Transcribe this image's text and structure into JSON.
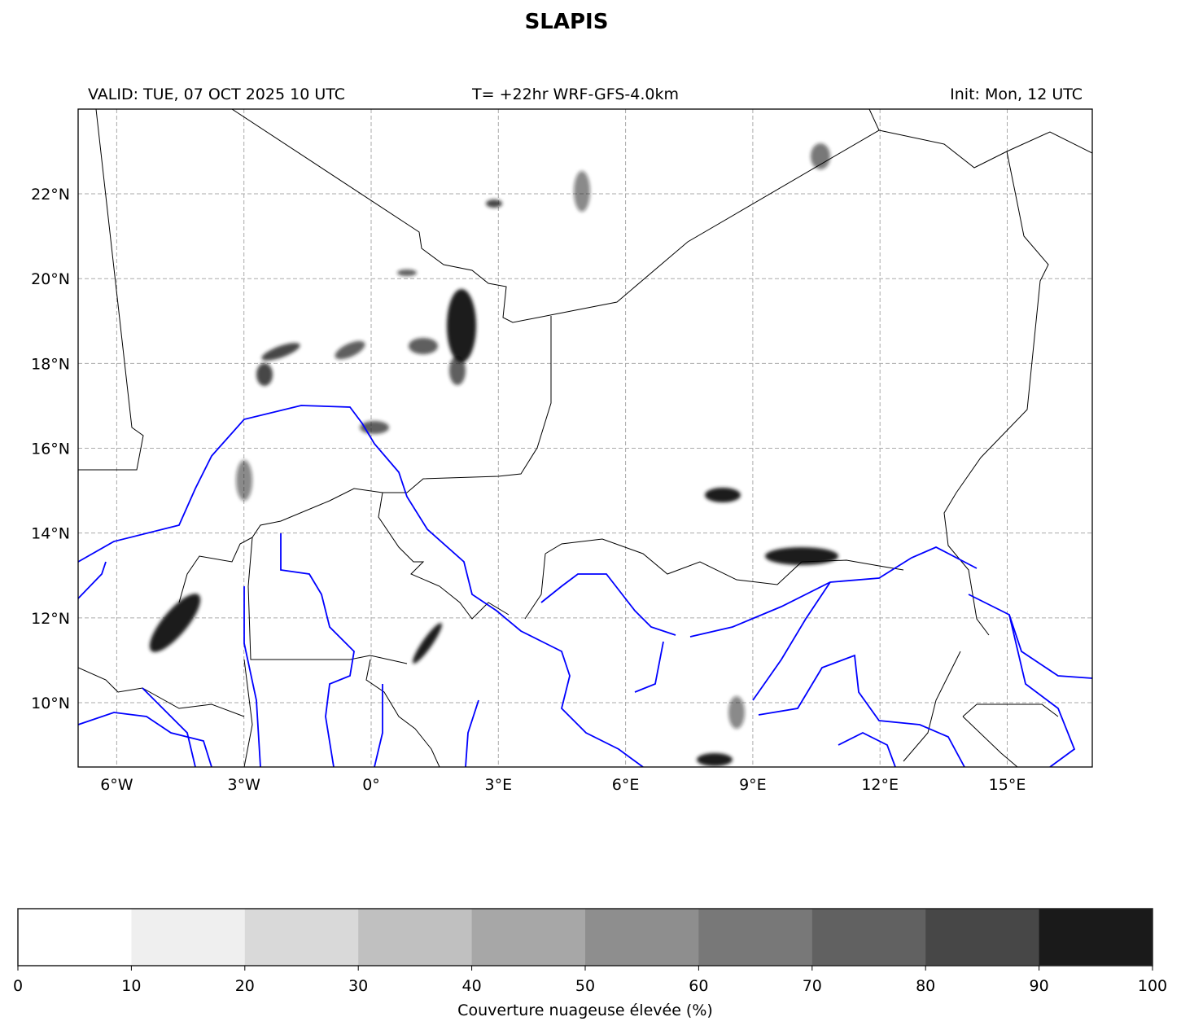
{
  "title": "SLAPIS",
  "header": {
    "valid": "VALID: TUE, 07 OCT 2025 10 UTC",
    "forecast": "T= +22hr WRF-GFS-4.0km",
    "init": "Init: Mon, 12 UTC"
  },
  "map": {
    "lon_range": [
      -7,
      17
    ],
    "lat_range": [
      8.5,
      24
    ],
    "lon_ticks": [
      {
        "value": -6,
        "label": "6°W"
      },
      {
        "value": -3,
        "label": "3°W"
      },
      {
        "value": 0,
        "label": "0°"
      },
      {
        "value": 3,
        "label": "3°E"
      },
      {
        "value": 6,
        "label": "6°E"
      },
      {
        "value": 9,
        "label": "9°E"
      },
      {
        "value": 12,
        "label": "12°E"
      },
      {
        "value": 15,
        "label": "15°E"
      }
    ],
    "lat_ticks": [
      {
        "value": 10,
        "label": "10°N"
      },
      {
        "value": 12,
        "label": "12°N"
      },
      {
        "value": 14,
        "label": "14°N"
      },
      {
        "value": 16,
        "label": "16°N"
      },
      {
        "value": 18,
        "label": "18°N"
      },
      {
        "value": 20,
        "label": "20°N"
      },
      {
        "value": 22,
        "label": "22°N"
      }
    ],
    "gridlines": true,
    "border_color": "#000000",
    "river_color": "#0000ff",
    "cloud_color": "#1a1a1a"
  },
  "colorbar": {
    "label": "Couverture nuageuse élevée (%)",
    "ticks": [
      "0",
      "10",
      "20",
      "30",
      "40",
      "50",
      "60",
      "70",
      "80",
      "90",
      "100"
    ],
    "colors": [
      "#ffffff",
      "#efefef",
      "#d9d9d9",
      "#c0c0c0",
      "#a7a7a7",
      "#8e8e8e",
      "#787878",
      "#616161",
      "#474747",
      "#1a1a1a"
    ]
  }
}
